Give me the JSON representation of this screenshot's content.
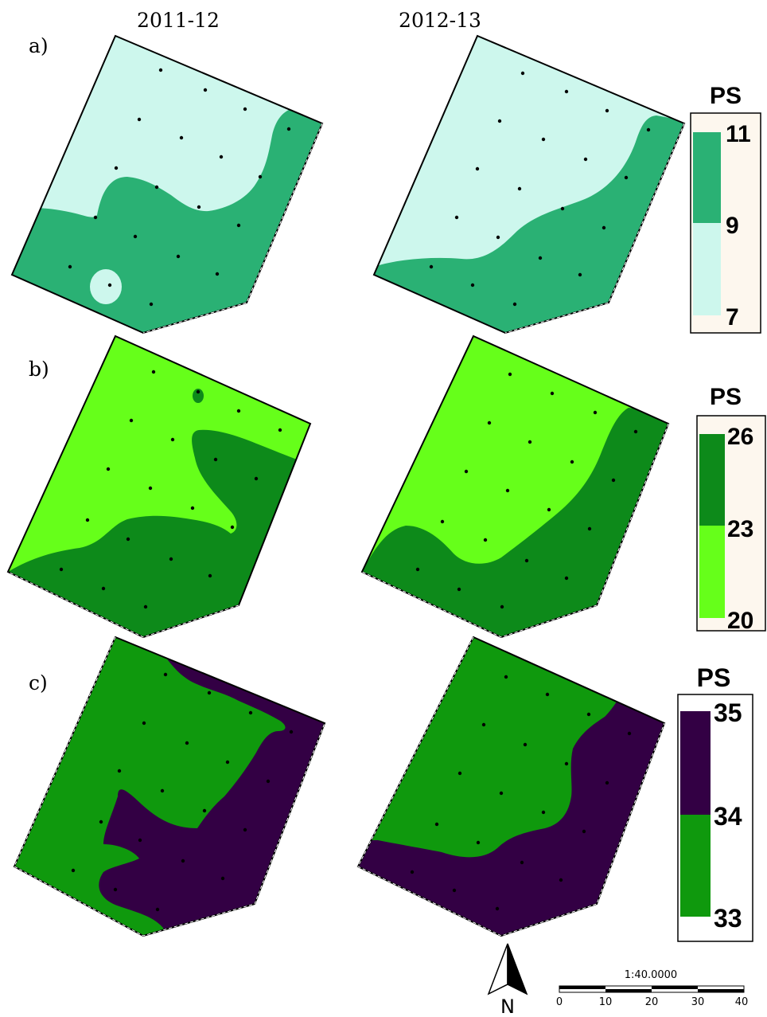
{
  "columns": [
    "2011-12",
    "2012-13"
  ],
  "rows": [
    {
      "label": "a)",
      "legend": {
        "title": "PS",
        "values": [
          "11",
          "9",
          "7"
        ]
      },
      "colors": {
        "low": "#cdf7ed",
        "high": "#2ab174"
      }
    },
    {
      "label": "b)",
      "legend": {
        "title": "PS",
        "values": [
          "26",
          "23",
          "20"
        ]
      },
      "colors": {
        "low": "#66ff1a",
        "high": "#0d8a1a"
      }
    },
    {
      "label": "c)",
      "legend": {
        "title": "PS",
        "values": [
          "35",
          "34",
          "33"
        ]
      },
      "colors": {
        "low": "#0f990d",
        "high": "#330044"
      }
    }
  ],
  "legend_bg": "#fdf7ee",
  "north_arrow": {
    "label": "N"
  },
  "scale_bar": {
    "ratio": "1:40.0000",
    "ticks": [
      "0",
      "10",
      "20",
      "30",
      "40"
    ]
  }
}
